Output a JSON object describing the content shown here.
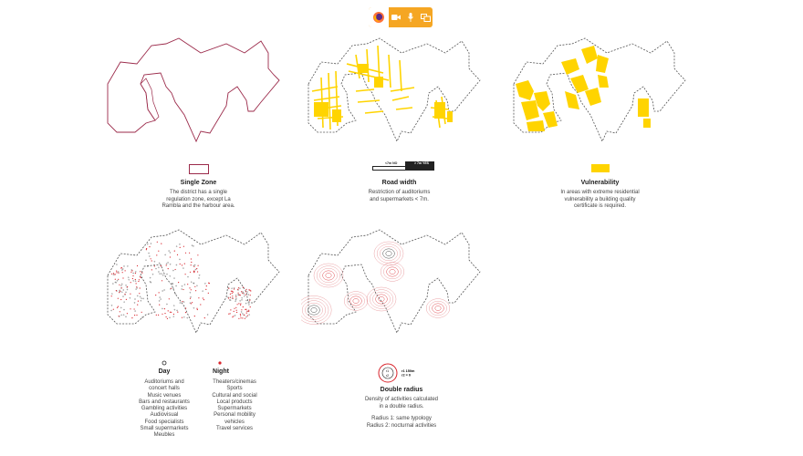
{
  "toolbar": {
    "icons": [
      "firefox-icon",
      "camera-icon",
      "microphone-icon",
      "screen-share-icon"
    ]
  },
  "colors": {
    "outline": "#9b2a4a",
    "yellow": "#ffd400",
    "red": "#d9242c",
    "dash": "#555555"
  },
  "panels": {
    "single_zone": {
      "title": "Single Zone",
      "desc": [
        "The district has a single",
        "regulation zone, except La",
        "Rambla and the harbour area."
      ]
    },
    "road_width": {
      "title": "Road width",
      "desc": [
        "Restriction of auditoriums",
        "and supermarkets < 7m."
      ],
      "bar_left": "<7m NO",
      "bar_right": "> 7m YES"
    },
    "vulnerability": {
      "title": "Vulnerability",
      "desc": [
        "In areas with extreme residential",
        "vulnerability a building quality",
        "certificate is required."
      ]
    },
    "day_night": {
      "day_title": "Day",
      "night_title": "Night",
      "day_list": [
        "Auditoriums and",
        "concert halls",
        "Music venues",
        "Bars and restaurants",
        "Gambling activities",
        "Audiovisual",
        "Food specialists",
        "Small supermarkets",
        "Meubles"
      ],
      "night_list": [
        "Theaters/cinemas",
        "Sports",
        "Cultural and social",
        "Local products",
        "Supermarkets",
        "Personal mobility",
        "vehicles",
        "Travel services"
      ]
    },
    "double_radius": {
      "title": "Double radius",
      "legend_r1": "r1",
      "legend_r2": "r2",
      "legend_note1": "r1 150m",
      "legend_note2": "r2 = 0",
      "desc": [
        "Density of activities calculated",
        "in a double radius."
      ],
      "radius_lines": [
        "Radius 1: same typology",
        "Radius 2: nocturnal activities"
      ]
    }
  }
}
